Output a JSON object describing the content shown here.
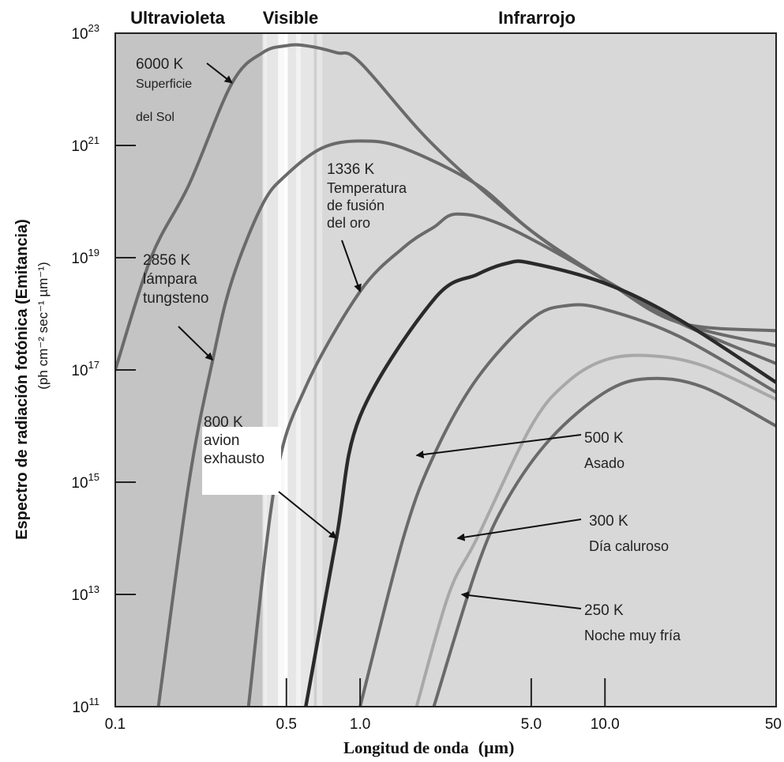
{
  "chart_data": {
    "type": "line",
    "scale": {
      "x": "log",
      "y": "log"
    },
    "xlim": [
      0.1,
      50
    ],
    "ylim": [
      100000000000.0,
      1e+23
    ],
    "xlabel": "Longitud de onda",
    "xlabel_unit": "(µm)",
    "ylabel": "Espectro de radiación fotónica (Emitancia)",
    "ylabel_unit": "(ph cm⁻² sec⁻¹ µm⁻¹)",
    "x_ticks": [
      {
        "value": 0.1,
        "label": "0.1"
      },
      {
        "value": 0.5,
        "label": "0.5"
      },
      {
        "value": 1.0,
        "label": "1.0"
      },
      {
        "value": 5.0,
        "label": "5.0"
      },
      {
        "value": 10.0,
        "label": "10.0"
      },
      {
        "value": 50,
        "label": "50"
      }
    ],
    "y_ticks": [
      {
        "exp": 11,
        "base": "10",
        "sup": "11"
      },
      {
        "exp": 13,
        "base": "10",
        "sup": "13"
      },
      {
        "exp": 15,
        "base": "10",
        "sup": "15"
      },
      {
        "exp": 17,
        "base": "10",
        "sup": "17"
      },
      {
        "exp": 19,
        "base": "10",
        "sup": "19"
      },
      {
        "exp": 21,
        "base": "10",
        "sup": "21"
      },
      {
        "exp": 23,
        "base": "10",
        "sup": "23"
      }
    ],
    "regions": [
      {
        "label": "Ultravioleta",
        "x_from": 0.1,
        "x_to": 0.4,
        "color": "#c4c4c4"
      },
      {
        "label": "Visible",
        "x_from": 0.4,
        "x_to": 0.7,
        "color": "#e6e6e6"
      },
      {
        "label": "Infrarrojo",
        "x_from": 0.7,
        "x_to": 50,
        "color": "#d8d8d8"
      }
    ],
    "series": [
      {
        "name": "6000 K",
        "color": "#6a6a6a",
        "width": 4,
        "points": [
          [
            0.1,
            1e+17
          ],
          [
            0.14,
            1e+19
          ],
          [
            0.2,
            2e+20
          ],
          [
            0.3,
            1.3e+22
          ],
          [
            0.4,
            4.5e+22
          ],
          [
            0.5,
            6e+22
          ],
          [
            0.6,
            6e+22
          ],
          [
            0.8,
            4.5e+22
          ],
          [
            1.0,
            3e+22
          ],
          [
            2.0,
            1e+21
          ],
          [
            5.0,
            3e+19
          ],
          [
            10,
            4e+18
          ],
          [
            20,
            7e+17
          ],
          [
            50,
            5e+17
          ]
        ]
      },
      {
        "name": "2856 K",
        "color": "#6a6a6a",
        "width": 4,
        "points": [
          [
            0.15,
            100000000000.0
          ],
          [
            0.2,
            1000000000000000.0
          ],
          [
            0.25,
            1.5e+17
          ],
          [
            0.3,
            4e+18
          ],
          [
            0.4,
            9e+19
          ],
          [
            0.5,
            3e+20
          ],
          [
            0.7,
            9e+20
          ],
          [
            1.0,
            1.2e+21
          ],
          [
            1.5,
            9e+20
          ],
          [
            3.0,
            2e+20
          ],
          [
            5.0,
            3e+19
          ],
          [
            10,
            4e+18
          ],
          [
            20,
            7e+17
          ],
          [
            50,
            2.7e+17
          ]
        ]
      },
      {
        "name": "1336 K",
        "color": "#6a6a6a",
        "width": 4,
        "points": [
          [
            0.35,
            100000000000.0
          ],
          [
            0.45,
            1000000000000000.0
          ],
          [
            0.6,
            5e+16
          ],
          [
            1.0,
            2.5e+18
          ],
          [
            1.5,
            1.5e+19
          ],
          [
            2.0,
            3.5e+19
          ],
          [
            2.5,
            6e+19
          ],
          [
            4.0,
            3.5e+19
          ],
          [
            10,
            4e+18
          ],
          [
            20,
            7e+17
          ],
          [
            50,
            1.3e+17
          ]
        ]
      },
      {
        "name": "800 K",
        "color": "#2a2a2a",
        "width": 4.5,
        "points": [
          [
            0.6,
            100000000000.0
          ],
          [
            0.8,
            100000000000000.0
          ],
          [
            1.0,
            1.5e+16
          ],
          [
            2.0,
            1.8e+18
          ],
          [
            3.0,
            5e+18
          ],
          [
            4.0,
            8e+18
          ],
          [
            5.0,
            8e+18
          ],
          [
            10,
            3.5e+18
          ],
          [
            20,
            8e+17
          ],
          [
            50,
            6e+16
          ]
        ]
      },
      {
        "name": "500 K",
        "color": "#6a6a6a",
        "width": 4,
        "points": [
          [
            1.0,
            100000000000.0
          ],
          [
            1.5,
            100000000000000.0
          ],
          [
            2.0,
            3000000000000000.0
          ],
          [
            3.0,
            7e+16
          ],
          [
            5.0,
            8e+17
          ],
          [
            7.0,
            1.4e+18
          ],
          [
            10,
            1.2e+18
          ],
          [
            20,
            4e+17
          ],
          [
            50,
            4e+16
          ]
        ]
      },
      {
        "name": "300 K",
        "color": "#a8a8a8",
        "width": 4,
        "points": [
          [
            1.7,
            100000000000.0
          ],
          [
            2.3,
            10000000000000.0
          ],
          [
            3.0,
            100000000000000.0
          ],
          [
            5.0,
            1e+16
          ],
          [
            7.0,
            6e+16
          ],
          [
            10,
            1.5e+17
          ],
          [
            15,
            1.8e+17
          ],
          [
            25,
            1.2e+17
          ],
          [
            50,
            3e+16
          ]
        ]
      },
      {
        "name": "250 K",
        "color": "#6a6a6a",
        "width": 4,
        "points": [
          [
            2.0,
            100000000000.0
          ],
          [
            3.0,
            30000000000000.0
          ],
          [
            4.0,
            500000000000000.0
          ],
          [
            6.0,
            6000000000000000.0
          ],
          [
            10,
            4e+16
          ],
          [
            15,
            7e+16
          ],
          [
            25,
            5e+16
          ],
          [
            50,
            1e+16
          ]
        ]
      }
    ],
    "annotations": [
      {
        "id": "6000",
        "lines": [
          "6000 K",
          "Superficie",
          "del Sol"
        ],
        "arrow_to": [
          0.3,
          1.3e+22
        ]
      },
      {
        "id": "2856",
        "lines": [
          "2856 K",
          "lámpara",
          "tungsteno"
        ],
        "arrow_to": [
          0.25,
          1.5e+17
        ]
      },
      {
        "id": "1336",
        "lines": [
          "1336 K",
          "Temperatura",
          "de fusión",
          "del oro"
        ],
        "arrow_to": [
          1.0,
          2.5e+18
        ]
      },
      {
        "id": "800",
        "lines": [
          "800 K",
          "avion",
          "exhausto"
        ],
        "arrow_to": [
          0.8,
          100000000000000.0
        ]
      },
      {
        "id": "500",
        "lines": [
          "500 K",
          "Asado"
        ],
        "arrow_to": [
          1.7,
          3000000000000000.0
        ]
      },
      {
        "id": "300",
        "lines": [
          "300 K",
          "Día caluroso"
        ],
        "arrow_to": [
          2.5,
          100000000000000.0
        ]
      },
      {
        "id": "250",
        "lines": [
          "250 K",
          "Noche muy fría"
        ],
        "arrow_to": [
          2.6,
          10000000000000.0
        ]
      }
    ]
  }
}
